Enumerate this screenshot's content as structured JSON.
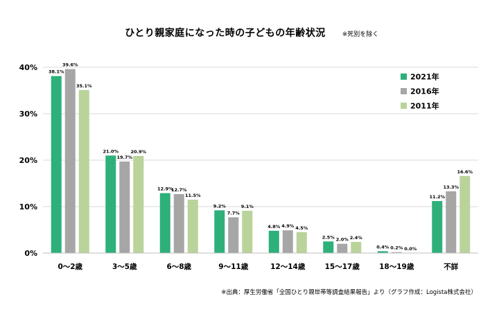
{
  "chart_data": {
    "type": "bar",
    "title": "ひとり親家庭になった時の子どもの年齢状況",
    "subtitle": "※死別を除く",
    "source": "※出典：厚生労働省「全国ひとり親世帯等調査結果報告」より（グラフ作成：Logista株式会社）",
    "categories": [
      "0〜2歳",
      "3〜5歳",
      "6〜8歳",
      "9〜11歳",
      "12〜14歳",
      "15〜17歳",
      "18〜19歳",
      "不詳"
    ],
    "series": [
      {
        "name": "2021年",
        "color": "#2db07a",
        "values": [
          38.1,
          21.0,
          12.9,
          9.2,
          4.8,
          2.5,
          0.4,
          11.2
        ],
        "labels": [
          "38.1%",
          "21.0%",
          "12.9%",
          "9.2%",
          "4.8%",
          "2.5%",
          "0.4%",
          "11.2%"
        ]
      },
      {
        "name": "2016年",
        "color": "#a6a6a6",
        "values": [
          39.6,
          19.7,
          12.7,
          7.7,
          4.9,
          2.0,
          0.2,
          13.3
        ],
        "labels": [
          "39.6%",
          "19.7%",
          "12.7%",
          "7.7%",
          "4.9%",
          "2.0%",
          "0.2%",
          "13.3%"
        ]
      },
      {
        "name": "2011年",
        "color": "#b9d39b",
        "values": [
          35.1,
          20.9,
          11.5,
          9.1,
          4.5,
          2.4,
          0.0,
          16.6
        ],
        "labels": [
          "35.1%",
          "20.9%",
          "11.5%",
          "9.1%",
          "4.5%",
          "2.4%",
          "0.0%",
          "16.6%"
        ]
      }
    ],
    "ylim": [
      0,
      40
    ],
    "yticks": [
      "0%",
      "10%",
      "20%",
      "30%",
      "40%"
    ],
    "ytick_values": [
      0,
      10,
      20,
      30,
      40
    ],
    "grid": true,
    "legend_position": "top-right"
  }
}
